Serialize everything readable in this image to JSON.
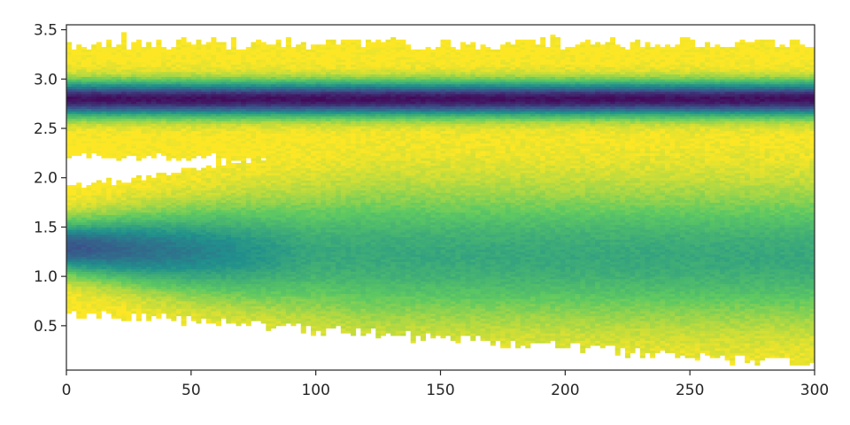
{
  "chart_data": {
    "type": "heatmap",
    "title": "",
    "xlabel": "",
    "ylabel": "",
    "xlim": [
      0,
      300
    ],
    "ylim": [
      0.05,
      3.55
    ],
    "xticks": [
      0,
      50,
      100,
      150,
      200,
      250,
      300
    ],
    "xtick_labels": [
      "0",
      "50",
      "100",
      "150",
      "200",
      "250",
      "300"
    ],
    "yticks": [
      0.5,
      1.0,
      1.5,
      2.0,
      2.5,
      3.0,
      3.5
    ],
    "ytick_labels": [
      "0.5",
      "1.0",
      "1.5",
      "2.0",
      "2.5",
      "3.0",
      "3.5"
    ],
    "grid": false,
    "colormap": "viridis",
    "colors": {
      "low": "#fde725",
      "mid_high": "#5ec962",
      "mid": "#21918c",
      "high": "#3b528b",
      "peak": "#440154",
      "axes": "#262626",
      "background": "#ffffff"
    },
    "density_bands": [
      {
        "center": 2.8,
        "width_sd": 0.12,
        "peak_density": 0.95,
        "support": [
          2.15,
          3.4
        ]
      },
      {
        "center_start": 1.3,
        "center_end": 1.2,
        "width_sd_start": 0.18,
        "width_sd_end": 0.45,
        "peak_density_start": 0.75,
        "peak_density_end": 0.4,
        "support": [
          0.1,
          2.2
        ]
      }
    ]
  }
}
